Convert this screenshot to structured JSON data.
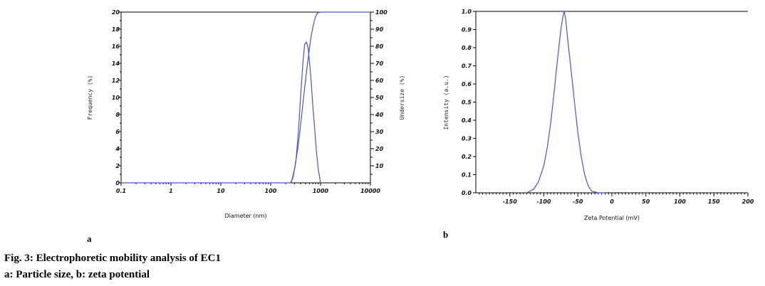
{
  "figure": {
    "caption_title": "Fig. 3: Electrophoretic mobility analysis of EC1",
    "caption_subtitle": "a: Particle size, b: zeta potential"
  },
  "chart_data": [
    {
      "panel": "a",
      "type": "line",
      "x_scale": "log",
      "xlabel": "Diameter (nm)",
      "ylabel": "Frequency (%)",
      "y2label": "Undersize (%)",
      "xlim": [
        0.1,
        10000
      ],
      "ylim": [
        0,
        20
      ],
      "y2lim": [
        0,
        100
      ],
      "x_ticks": [
        0.1,
        1,
        10,
        100,
        1000,
        10000
      ],
      "x_tick_labels": [
        "0.1",
        "1",
        "10",
        "100",
        "1000",
        "10000"
      ],
      "y_ticks": [
        0,
        2,
        4,
        6,
        8,
        10,
        12,
        14,
        16,
        18,
        20
      ],
      "y_tick_labels": [
        "0",
        "2",
        "4",
        "6",
        "8",
        "10",
        "12",
        "14",
        "16",
        "18",
        "20"
      ],
      "y2_ticks": [
        10,
        20,
        30,
        40,
        50,
        60,
        70,
        80,
        90,
        100
      ],
      "y2_tick_labels": [
        "10",
        "20",
        "30",
        "40",
        "50",
        "60",
        "70",
        "80",
        "90",
        "100"
      ],
      "grid": false,
      "series": [
        {
          "axis": "left",
          "x": [
            0.1,
            0.2,
            0.3,
            250,
            280,
            320,
            360,
            400,
            440,
            480,
            520,
            560,
            600,
            650,
            700,
            760,
            820,
            900,
            980,
            1000
          ],
          "y": [
            0,
            0,
            0,
            0,
            0.6,
            2.5,
            6.0,
            10.2,
            13.8,
            16.2,
            16.5,
            15.9,
            14.2,
            11.8,
            9.0,
            6.4,
            3.9,
            1.6,
            0.3,
            0
          ]
        },
        {
          "axis": "right",
          "x": [
            260,
            300,
            350,
            400,
            450,
            500,
            550,
            600,
            650,
            700,
            750,
            800,
            850,
            900,
            1000,
            10000
          ],
          "y": [
            0,
            8,
            20,
            34,
            48,
            60,
            70,
            79,
            86,
            91,
            95,
            97.5,
            99,
            99.7,
            100,
            100
          ]
        }
      ]
    },
    {
      "panel": "b",
      "type": "line",
      "xlabel": "Zeta Potential (mV)",
      "ylabel": "Intensity (a.u.)",
      "xlim": [
        -200,
        200
      ],
      "ylim": [
        0,
        1.0
      ],
      "x_ticks": [
        -150,
        -100,
        -50,
        0,
        50,
        100,
        150,
        200
      ],
      "x_tick_labels": [
        "-150",
        "-100",
        "-50",
        "0",
        "50",
        "100",
        "150",
        "200"
      ],
      "y_ticks": [
        0,
        0.1,
        0.2,
        0.3,
        0.4,
        0.5,
        0.6,
        0.7,
        0.8,
        0.9,
        1.0
      ],
      "y_tick_labels": [
        "0.0",
        "0.1",
        "0.2",
        "0.3",
        "0.4",
        "0.5",
        "0.6",
        "0.7",
        "0.8",
        "0.9",
        "1.0"
      ],
      "grid": false,
      "series": [
        {
          "x": [
            -125,
            -115,
            -108,
            -100,
            -95,
            -90,
            -85,
            -80,
            -75,
            -72,
            -70,
            -68,
            -65,
            -60,
            -55,
            -50,
            -45,
            -40,
            -35,
            -30,
            -20,
            -10
          ],
          "y": [
            0,
            0.02,
            0.06,
            0.15,
            0.25,
            0.38,
            0.55,
            0.73,
            0.9,
            0.97,
            1.0,
            0.96,
            0.85,
            0.68,
            0.5,
            0.33,
            0.2,
            0.1,
            0.04,
            0.01,
            0,
            0
          ]
        }
      ]
    }
  ]
}
